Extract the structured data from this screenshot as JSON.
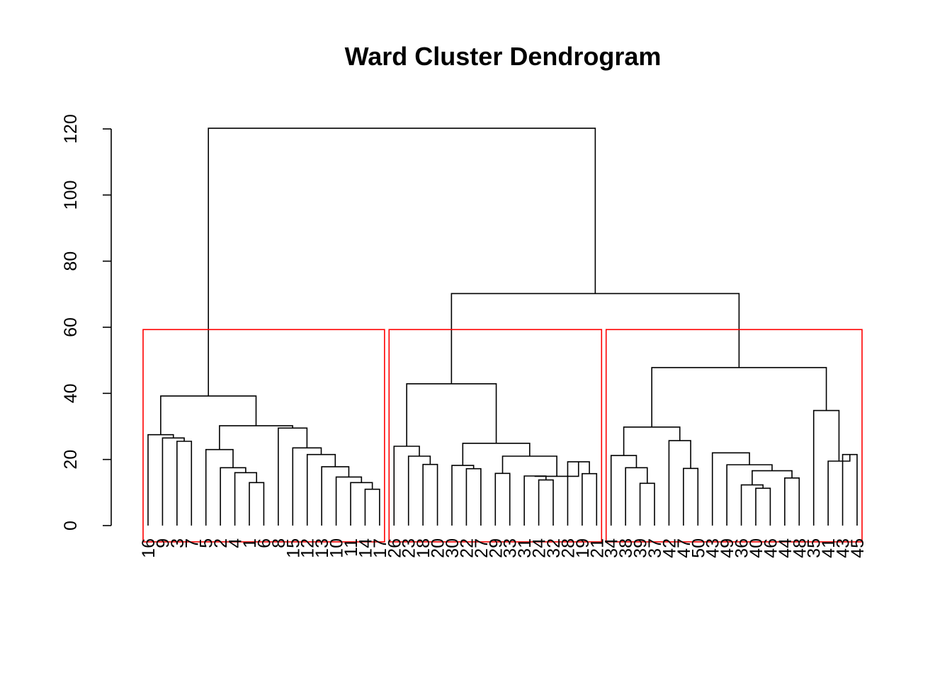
{
  "chart_data": {
    "type": "dendrogram",
    "title": "Ward Cluster Dendrogram",
    "xlabel": "",
    "ylabel": "",
    "ylim": [
      0,
      120
    ],
    "yticks": [
      0,
      20,
      40,
      60,
      80,
      100,
      120
    ],
    "leaves": [
      "16",
      "9",
      "3",
      "7",
      "5",
      "2",
      "4",
      "1",
      "6",
      "8",
      "15",
      "12",
      "13",
      "10",
      "11",
      "14",
      "17",
      "26",
      "23",
      "18",
      "20",
      "30",
      "22",
      "27",
      "29",
      "33",
      "31",
      "24",
      "32",
      "28",
      "19",
      "21",
      "34",
      "38",
      "39",
      "37",
      "42",
      "47",
      "50",
      "43",
      "49",
      "36",
      "40",
      "46",
      "44",
      "48",
      "35",
      "41",
      "43",
      "45"
    ],
    "merges": [
      {
        "id": "a1",
        "l": "16",
        "r": "9h",
        "h": 27.5
      },
      {
        "id": "9h",
        "l": "9",
        "r": "3h",
        "h": 26.5
      },
      {
        "id": "3h",
        "l": "3",
        "r": "7",
        "h": 25.5
      },
      {
        "id": "b5",
        "l": "5",
        "r": "b2",
        "h": 23
      },
      {
        "id": "b2",
        "l": "2",
        "r": "b4",
        "h": 17.5
      },
      {
        "id": "b4",
        "l": "4",
        "r": "b1",
        "h": 16
      },
      {
        "id": "b1",
        "l": "1",
        "r": "6",
        "h": 13
      },
      {
        "id": "c1",
        "l": "8",
        "r": "c2",
        "h": 29.5
      },
      {
        "id": "c2",
        "l": "15",
        "r": "c3",
        "h": 23.5
      },
      {
        "id": "c3",
        "l": "12",
        "r": "c4",
        "h": 21.5
      },
      {
        "id": "c4",
        "l": "13",
        "r": "c5",
        "h": 17.8
      },
      {
        "id": "c5",
        "l": "10",
        "r": "c6",
        "h": 14.7
      },
      {
        "id": "c6",
        "l": "11",
        "r": "c7",
        "h": 13
      },
      {
        "id": "c7",
        "l": "14",
        "r": "17",
        "h": 11
      },
      {
        "id": "bc",
        "l": "b5",
        "r": "c1",
        "h": 30.2
      },
      {
        "id": "G1",
        "l": "a1",
        "r": "bc",
        "h": 39.2
      },
      {
        "id": "d1",
        "l": "26",
        "r": "d2",
        "h": 24
      },
      {
        "id": "d2",
        "l": "23",
        "r": "d3",
        "h": 21
      },
      {
        "id": "d3",
        "l": "18",
        "r": "20",
        "h": 18.5
      },
      {
        "id": "e1",
        "l": "30",
        "r": "e2",
        "h": 18.2
      },
      {
        "id": "e2",
        "l": "22",
        "r": "27",
        "h": 17.2
      },
      {
        "id": "e3",
        "l": "29",
        "r": "33",
        "h": 15.8
      },
      {
        "id": "e4",
        "l": "31",
        "r": "e5",
        "h": 15
      },
      {
        "id": "e5",
        "l": "24",
        "r": "32",
        "h": 13.8
      },
      {
        "id": "e4b",
        "l": "31",
        "r": "e5",
        "h": 13
      },
      {
        "id": "e6",
        "l": "28",
        "r": "f1",
        "h": 19.3
      },
      {
        "id": "f1",
        "l": "19",
        "r": "21",
        "h": 15.7
      },
      {
        "id": "e7",
        "l": "e4",
        "r": "e6",
        "h": 14.9
      },
      {
        "id": "e8",
        "l": "e3",
        "r": "e7",
        "h": 21
      },
      {
        "id": "e9",
        "l": "e1",
        "r": "e8",
        "h": 24.9
      },
      {
        "id": "G2",
        "l": "d1",
        "r": "e9",
        "h": 42.9
      },
      {
        "id": "g1",
        "l": "34",
        "r": "g2",
        "h": 21.2
      },
      {
        "id": "g2",
        "l": "38",
        "r": "g3",
        "h": 17.5
      },
      {
        "id": "g3",
        "l": "39",
        "r": "37",
        "h": 12.8
      },
      {
        "id": "h1",
        "l": "42",
        "r": "h2",
        "h": 25.7
      },
      {
        "id": "h2",
        "l": "47",
        "r": "50",
        "h": 17.3
      },
      {
        "id": "h3",
        "l": "43",
        "r": "h4",
        "h": 22
      },
      {
        "id": "h4",
        "l": "49",
        "r": "h5",
        "h": 18.4
      },
      {
        "id": "h5",
        "l": "i1",
        "r": "i2",
        "h": 16.6
      },
      {
        "id": "i1",
        "l": "36",
        "r": "i3",
        "h": 12.3
      },
      {
        "id": "i3",
        "l": "40",
        "r": "46",
        "h": 11.3
      },
      {
        "id": "i2",
        "l": "44",
        "r": "48",
        "h": 14.4
      },
      {
        "id": "gh",
        "l": "g1",
        "r": "h1",
        "h": 29.8
      },
      {
        "id": "j1",
        "l": "35",
        "r": "j2",
        "h": 34.8
      },
      {
        "id": "j2",
        "l": "41",
        "r": "j3",
        "h": 19.5
      },
      {
        "id": "j3",
        "l": "43",
        "r": "45",
        "h": 21.5
      },
      {
        "id": "G3",
        "l": "gh",
        "r": "j1",
        "h": 47.8
      },
      {
        "id": "G23",
        "l": "G2",
        "r": "G3",
        "h": 70.2
      },
      {
        "id": "root",
        "l": "G1",
        "r": "G23",
        "h": 120.2
      }
    ],
    "clusters": [
      {
        "from": "16",
        "to": "17",
        "color": "#ff0000"
      },
      {
        "from": "26",
        "to": "21",
        "color": "#ff0000"
      },
      {
        "from": "34",
        "to": "45",
        "color": "#ff0000"
      }
    ],
    "cut_height": 59.3,
    "colors": {
      "branch": "#000000",
      "cluster": "#ff0000"
    }
  }
}
